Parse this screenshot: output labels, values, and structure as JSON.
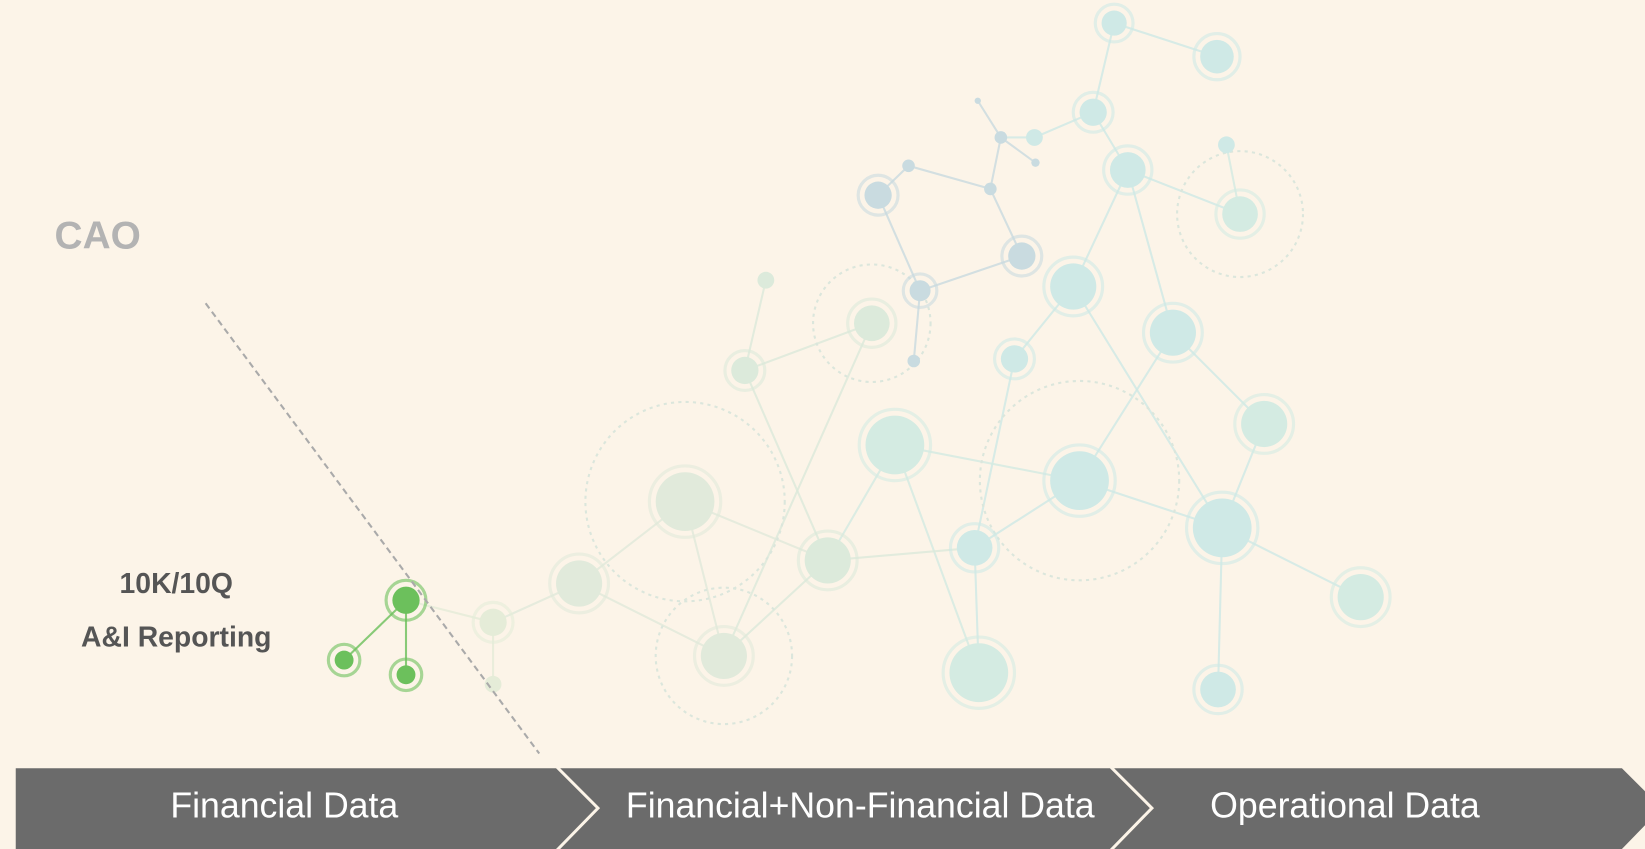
{
  "role": "CAO",
  "labels": [
    "10K/10Q",
    "A&I Reporting"
  ],
  "stages": [
    "Financial Data",
    "Financial+Non-Financial Data",
    "Operational Data"
  ]
}
